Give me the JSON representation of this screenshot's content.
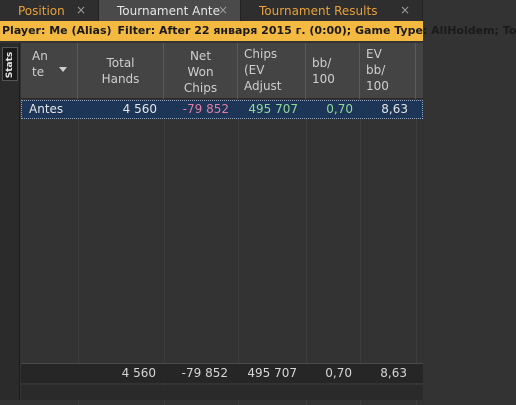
{
  "tabs": [
    {
      "label": "Position",
      "close": "×",
      "active": false
    },
    {
      "label": "Tournament Ante",
      "close": "×",
      "active": true
    },
    {
      "label": "Tournament Results",
      "close": "×",
      "active": false
    }
  ],
  "filter_bar": {
    "player_text": "Player: Me (Alias)",
    "filter_text": "Filter: After 22 января 2015 г. (0:00); Game Type: AllHoldem; To"
  },
  "side_panel": {
    "stats_tab_label": "Stats"
  },
  "columns": [
    {
      "key": "ante",
      "lines": [
        "An",
        "te"
      ]
    },
    {
      "key": "hands",
      "lines": [
        "Total",
        "Hands"
      ]
    },
    {
      "key": "net",
      "lines": [
        "Net",
        "Won",
        "Chips"
      ]
    },
    {
      "key": "chips",
      "lines": [
        "Chips",
        "(EV",
        "Adjust"
      ]
    },
    {
      "key": "bb",
      "lines": [
        "bb/",
        "100"
      ]
    },
    {
      "key": "evbb",
      "lines": [
        "EV",
        "bb/",
        "100"
      ]
    }
  ],
  "rows": [
    {
      "name": "Antes",
      "hands": "4 560",
      "net": "-79 852",
      "chips": "495 707",
      "bb": "0,70",
      "evbb": "8,63"
    }
  ],
  "totals": {
    "hands": "4 560",
    "net": "-79 852",
    "chips": "495 707",
    "bb": "0,70",
    "evbb": "8,63"
  },
  "colors": {
    "accent": "#f3b941",
    "negative": "#e07fa2",
    "positive": "#8fd99a",
    "selected_row": "#1d3557"
  }
}
